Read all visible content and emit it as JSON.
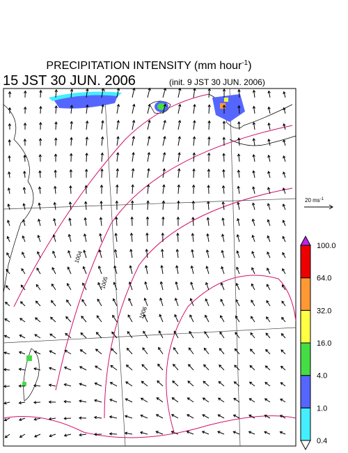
{
  "header": {
    "title": "PRECIPITATION INTENSITY (mm hour",
    "title_sup": "-1",
    "title_end": ")",
    "valid_time": "15 JST 30 JUN. 2006",
    "init_time": "(init. 9 JST 30 JUN. 2006)"
  },
  "vector_reference": {
    "label": "20 ms",
    "sup": "-1"
  },
  "contours": [
    "1004",
    "1005",
    "1006"
  ],
  "colorbar": {
    "labels": [
      "0.4",
      "1.0",
      "4.0",
      "16.0",
      "32.0",
      "64.0",
      "100.0"
    ],
    "colors": [
      "#ffffff",
      "#44eeff",
      "#5566ff",
      "#44dd44",
      "#ffff44",
      "#ff9933",
      "#ee0000",
      "#bb22ee"
    ]
  }
}
